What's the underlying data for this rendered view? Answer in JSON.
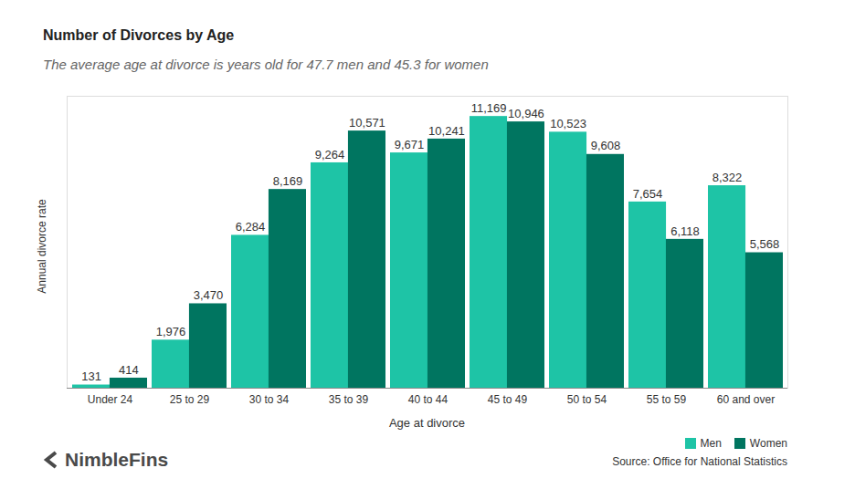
{
  "chart_data": {
    "type": "bar",
    "title": "Number of Divorces by Age",
    "subtitle": "The average age at divorce is years old for 47.7 men and 45.3 for women",
    "x_label": "Age at divorce",
    "y_label": "Annual divorce rate",
    "categories": [
      "Under 24",
      "25 to 29",
      "30 to 34",
      "35 to 39",
      "40 to 44",
      "45 to 49",
      "50 to 54",
      "55 to 59",
      "60 and over"
    ],
    "series": [
      {
        "name": "Men",
        "color": "#1ec4a6",
        "values": [
          131,
          1976,
          6284,
          9264,
          9671,
          11169,
          10523,
          7654,
          8322
        ],
        "value_labels": [
          "131",
          "1,976",
          "6,284",
          "9,264",
          "9,671",
          "11,169",
          "10,523",
          "7,654",
          "8,322"
        ]
      },
      {
        "name": "Women",
        "color": "#007560",
        "values": [
          414,
          3470,
          8169,
          10571,
          10241,
          10946,
          9608,
          6118,
          5568
        ],
        "value_labels": [
          "414",
          "3,470",
          "8,169",
          "10,571",
          "10,241",
          "10,946",
          "9,608",
          "6,118",
          "5,568"
        ]
      }
    ],
    "ylim": [
      0,
      12000
    ],
    "yticks": [],
    "tick_labels": "x",
    "data_labels": true,
    "legend": "bottom-right",
    "source": "Source: Office for National Statistics",
    "logo": "NimbleFins"
  }
}
